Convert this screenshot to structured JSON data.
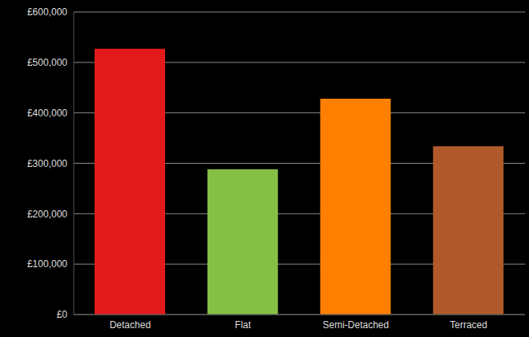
{
  "chart_data": {
    "type": "bar",
    "categories": [
      "Detached",
      "Flat",
      "Semi-Detached",
      "Terraced"
    ],
    "values": [
      527000,
      288000,
      428000,
      334000
    ],
    "colors": [
      "#e31a1c",
      "#86bf45",
      "#ff7f00",
      "#b05a2b"
    ],
    "ylim": [
      0,
      600000
    ],
    "yticks": [
      {
        "value": 0,
        "label": "£0"
      },
      {
        "value": 100000,
        "label": "£100,000"
      },
      {
        "value": 200000,
        "label": "£200,000"
      },
      {
        "value": 300000,
        "label": "£300,000"
      },
      {
        "value": 400000,
        "label": "£400,000"
      },
      {
        "value": 500000,
        "label": "£500,000"
      },
      {
        "value": 600000,
        "label": "£600,000"
      }
    ],
    "grid": true
  }
}
